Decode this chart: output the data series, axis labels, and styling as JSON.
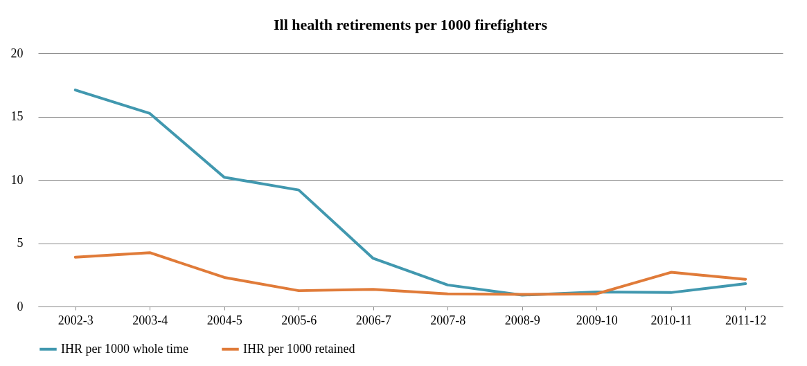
{
  "chart_data": {
    "type": "line",
    "title": "Ill health retirements per 1000 firefighters",
    "categories": [
      "2002-3",
      "2003-4",
      "2004-5",
      "2005-6",
      "2006-7",
      "2007-8",
      "2008-9",
      "2009-10",
      "2010-11",
      "2011-12"
    ],
    "series": [
      {
        "name": "IHR per 1000 whole time",
        "color": "#4198af",
        "values": [
          17.1,
          15.25,
          10.2,
          9.2,
          3.8,
          1.7,
          0.9,
          1.15,
          1.1,
          1.8
        ]
      },
      {
        "name": "IHR per 1000 retained",
        "color": "#e07b39",
        "values": [
          3.9,
          4.25,
          2.3,
          1.25,
          1.35,
          1.0,
          0.95,
          1.0,
          2.7,
          2.15
        ]
      }
    ],
    "ylim": [
      0,
      20
    ],
    "yticks": [
      0,
      5,
      10,
      15,
      20
    ],
    "grid": "y",
    "legend": "bottom",
    "marker": "none",
    "line_style": "solid"
  }
}
